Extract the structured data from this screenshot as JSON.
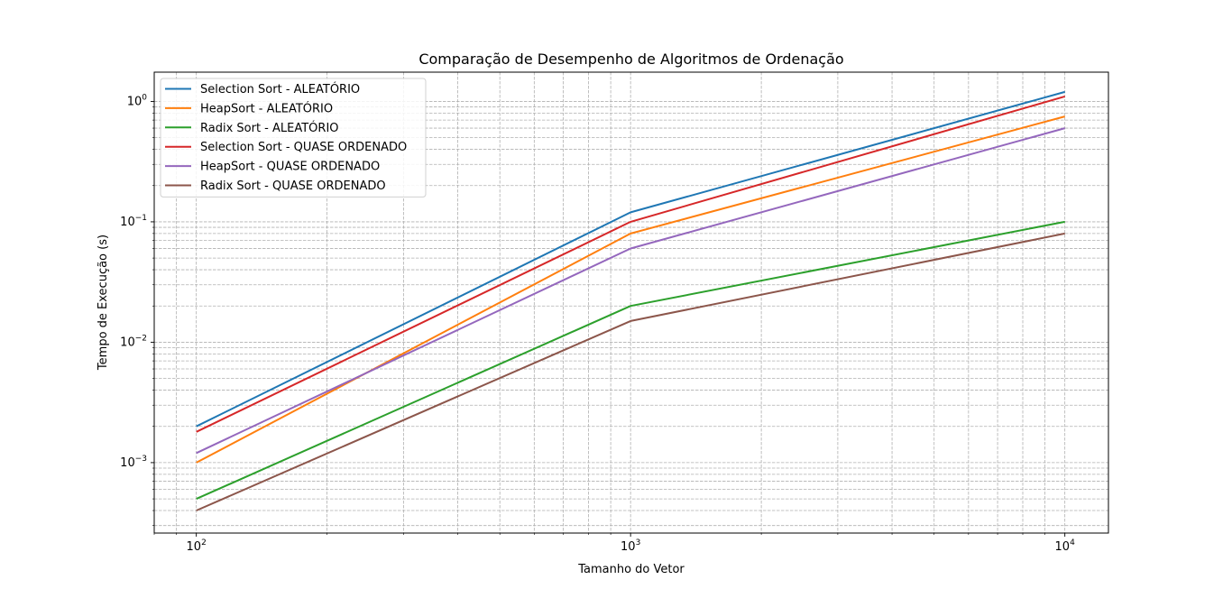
{
  "chart_data": {
    "type": "line",
    "title": "Comparação de Desempenho de Algoritmos de Ordenação",
    "xlabel": "Tamanho do Vetor",
    "ylabel": "Tempo de Execução (s)",
    "x_scale": "log",
    "y_scale": "log",
    "xlim": [
      80,
      12600
    ],
    "ylim": [
      0.00026,
      1.75
    ],
    "grid": true,
    "grid_style": "dashed",
    "legend_position": "top-left",
    "x_ticks": [
      {
        "value": 100,
        "base": "10",
        "exp": "2"
      },
      {
        "value": 1000,
        "base": "10",
        "exp": "3"
      },
      {
        "value": 10000,
        "base": "10",
        "exp": "4"
      }
    ],
    "y_ticks": [
      {
        "value": 0.001,
        "base": "10",
        "exp": "−3"
      },
      {
        "value": 0.01,
        "base": "10",
        "exp": "−2"
      },
      {
        "value": 0.1,
        "base": "10",
        "exp": "−1"
      },
      {
        "value": 1,
        "base": "10",
        "exp": "0"
      }
    ],
    "x": [
      100,
      1000,
      10000
    ],
    "series": [
      {
        "name": "Selection Sort - ALEATÓRIO",
        "color": "#1f77b4",
        "values": [
          0.002,
          0.12,
          1.2
        ]
      },
      {
        "name": "HeapSort - ALEATÓRIO",
        "color": "#ff7f0e",
        "values": [
          0.001,
          0.08,
          0.75
        ]
      },
      {
        "name": "Radix Sort - ALEATÓRIO",
        "color": "#2ca02c",
        "values": [
          0.0005,
          0.02,
          0.1
        ]
      },
      {
        "name": "Selection Sort - QUASE ORDENADO",
        "color": "#d62728",
        "values": [
          0.0018,
          0.1,
          1.1
        ]
      },
      {
        "name": "HeapSort - QUASE ORDENADO",
        "color": "#9467bd",
        "values": [
          0.0012,
          0.06,
          0.6
        ]
      },
      {
        "name": "Radix Sort - QUASE ORDENADO",
        "color": "#8c564b",
        "values": [
          0.0004,
          0.015,
          0.08
        ]
      }
    ]
  }
}
